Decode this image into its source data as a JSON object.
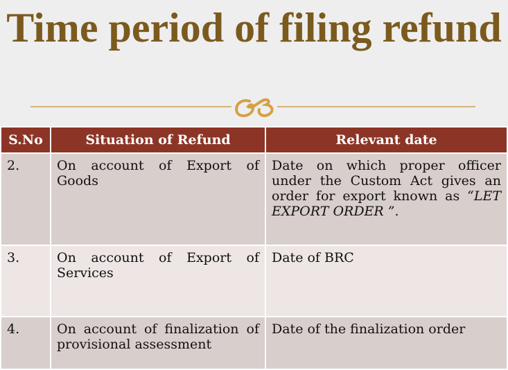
{
  "title": "Time period of filing refund",
  "ornament": "ঙ",
  "table": {
    "headers": [
      "S.No",
      "Situation of Refund",
      "Relevant date"
    ],
    "rows": [
      {
        "sno": "2.",
        "situation": "On account of Export of Goods",
        "date": "Date on which proper officer under the Custom Act gives an order for export known as ",
        "date_em": "“LET EXPORT ORDER ”",
        "date_end": "."
      },
      {
        "sno": "3.",
        "situation": "On account of Export of Services",
        "date": "Date of BRC"
      },
      {
        "sno": "4.",
        "situation": "On account of finalization of provisional assessment",
        "date": "Date of the finalization order"
      }
    ]
  }
}
